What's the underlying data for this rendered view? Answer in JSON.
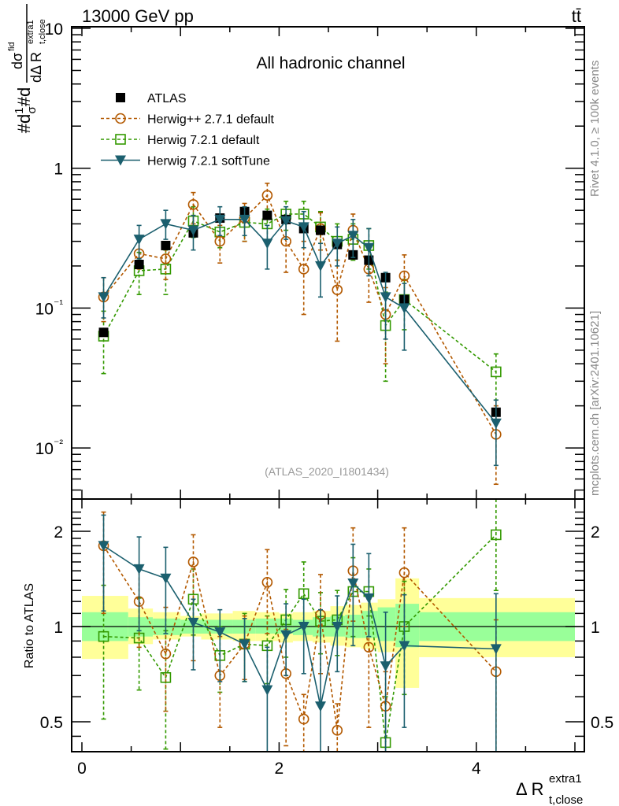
{
  "header": {
    "left_label": "13000 GeV pp",
    "right_label": "tt̄"
  },
  "side_labels": {
    "rivet": "Rivet 4.1.0, ≥ 100k events",
    "mcplots": "mcplots.cern.ch [arXiv:2401.10621]"
  },
  "chart_data": [
    {
      "type": "line",
      "panel": "main",
      "title": "All hadronic channel",
      "annotation": "(ATLAS_2020_I1801434)",
      "ylabel": "#d 1/σ #d dσ^{fid} / dΔ R_{t,close}^{extra1}",
      "yscale": "log",
      "ylim": [
        0.0045,
        11
      ],
      "yticks": [
        {
          "value": 10,
          "label": "10"
        },
        {
          "value": 1,
          "label": "1"
        },
        {
          "value": 0.1,
          "label": "10⁻¹"
        },
        {
          "value": 0.01,
          "label": "10⁻²"
        }
      ],
      "xlim": [
        -0.1,
        5.1
      ],
      "legend_position": "top-left",
      "x": [
        0.22,
        0.58,
        0.85,
        1.13,
        1.4,
        1.65,
        1.88,
        2.07,
        2.25,
        2.42,
        2.59,
        2.75,
        2.91,
        3.08,
        3.27,
        4.2
      ],
      "series": [
        {
          "name": "ATLAS",
          "style": "data",
          "color": "#000000",
          "marker": "square-filled",
          "values": [
            0.067,
            0.205,
            0.28,
            0.345,
            0.44,
            0.49,
            0.46,
            0.43,
            0.37,
            0.36,
            0.285,
            0.24,
            0.22,
            0.165,
            0.115,
            0.018
          ]
        },
        {
          "name": "Herwig++ 2.7.1 default",
          "style": "dashed",
          "color": "#b35900",
          "marker": "circle-open",
          "values": [
            0.12,
            0.245,
            0.225,
            0.55,
            0.3,
            0.44,
            0.64,
            0.3,
            0.19,
            0.37,
            0.135,
            0.36,
            0.19,
            0.09,
            0.17,
            0.0125
          ],
          "err_low": [
            0.08,
            0.19,
            0.16,
            0.4,
            0.21,
            0.3,
            0.45,
            0.18,
            0.09,
            0.26,
            0.058,
            0.25,
            0.11,
            0.04,
            0.12,
            0.0055
          ],
          "err_high": [
            0.165,
            0.31,
            0.29,
            0.67,
            0.39,
            0.56,
            0.78,
            0.42,
            0.3,
            0.48,
            0.22,
            0.47,
            0.28,
            0.14,
            0.24,
            0.02
          ]
        },
        {
          "name": "Herwig 7.2.1 default",
          "style": "dashed",
          "color": "#339900",
          "marker": "square-open",
          "values": [
            0.063,
            0.185,
            0.19,
            0.42,
            0.35,
            0.41,
            0.4,
            0.47,
            0.47,
            0.38,
            0.3,
            0.31,
            0.28,
            0.075,
            0.115,
            0.035
          ],
          "err_low": [
            0.034,
            0.125,
            0.125,
            0.32,
            0.27,
            0.3,
            0.3,
            0.36,
            0.37,
            0.29,
            0.22,
            0.22,
            0.19,
            0.03,
            0.07,
            0.022
          ],
          "err_high": [
            0.095,
            0.25,
            0.26,
            0.53,
            0.45,
            0.52,
            0.51,
            0.58,
            0.58,
            0.49,
            0.4,
            0.4,
            0.37,
            0.13,
            0.16,
            0.047
          ]
        },
        {
          "name": "Herwig 7.2.1 softTune",
          "style": "solid",
          "color": "#1b5f6e",
          "marker": "triangle-down-filled",
          "values": [
            0.12,
            0.31,
            0.4,
            0.36,
            0.43,
            0.43,
            0.29,
            0.42,
            0.38,
            0.2,
            0.29,
            0.33,
            0.27,
            0.12,
            0.1,
            0.015
          ],
          "err_low": [
            0.085,
            0.225,
            0.31,
            0.26,
            0.33,
            0.33,
            0.19,
            0.31,
            0.27,
            0.12,
            0.2,
            0.23,
            0.17,
            0.06,
            0.05,
            0.0075
          ],
          "err_high": [
            0.165,
            0.39,
            0.5,
            0.46,
            0.53,
            0.53,
            0.39,
            0.53,
            0.49,
            0.29,
            0.38,
            0.43,
            0.37,
            0.18,
            0.15,
            0.022
          ]
        }
      ]
    },
    {
      "type": "line",
      "panel": "ratio",
      "ylabel": "Ratio to ATLAS",
      "xlabel": "Δ R_{t,close}^{extra1}",
      "yscale": "log",
      "ylim": [
        0.42,
        2.35
      ],
      "yticks": [
        {
          "value": 2,
          "label": "2"
        },
        {
          "value": 1,
          "label": "1"
        },
        {
          "value": 0.5,
          "label": "0.5"
        }
      ],
      "xlim": [
        -0.1,
        5.1
      ],
      "xticks": [
        {
          "value": 0,
          "label": "0"
        },
        {
          "value": 2,
          "label": "2"
        },
        {
          "value": 4,
          "label": "4"
        }
      ],
      "reference_line": 1,
      "bands": {
        "bin_edges": [
          0.0,
          0.47,
          0.72,
          1.0,
          1.21,
          1.53,
          1.76,
          2.0,
          2.14,
          2.34,
          2.52,
          2.67,
          2.83,
          3.0,
          3.18,
          3.42,
          5.0
        ],
        "inner_low": [
          0.9,
          0.93,
          0.94,
          0.95,
          0.95,
          0.95,
          0.95,
          0.95,
          0.94,
          0.93,
          0.93,
          0.92,
          0.92,
          0.9,
          0.86,
          0.9
        ],
        "inner_high": [
          1.11,
          1.07,
          1.06,
          1.05,
          1.05,
          1.05,
          1.06,
          1.06,
          1.05,
          1.07,
          1.08,
          1.09,
          1.12,
          1.15,
          1.18,
          1.11
        ],
        "outer_low": [
          0.79,
          0.88,
          0.91,
          0.93,
          0.91,
          0.9,
          0.9,
          0.89,
          0.9,
          0.89,
          0.87,
          0.86,
          0.85,
          0.83,
          0.64,
          0.8
        ],
        "outer_high": [
          1.25,
          1.14,
          1.11,
          1.08,
          1.1,
          1.12,
          1.11,
          1.1,
          1.11,
          1.12,
          1.16,
          1.17,
          1.19,
          1.22,
          1.42,
          1.23
        ],
        "inner_color": "#99ff99",
        "outer_color": "#ffff99"
      },
      "x": [
        0.22,
        0.58,
        0.85,
        1.13,
        1.4,
        1.65,
        1.88,
        2.07,
        2.25,
        2.42,
        2.59,
        2.75,
        2.91,
        3.08,
        3.27,
        4.2
      ],
      "series": [
        {
          "name": "Herwig++ 2.7.1 default",
          "style": "dashed",
          "color": "#b35900",
          "marker": "circle-open",
          "values": [
            1.8,
            1.2,
            0.82,
            1.6,
            0.7,
            0.88,
            1.38,
            0.71,
            0.51,
            1.09,
            0.47,
            1.5,
            0.86,
            0.56,
            1.48,
            0.72
          ],
          "err_low": [
            1.1,
            0.86,
            0.54,
            0.78,
            0.48,
            0.68,
            0.95,
            0.42,
            0.4,
            0.71,
            0.38,
            1.04,
            0.48,
            0.4,
            1.0,
            0.39
          ],
          "err_high": [
            2.3,
            1.55,
            1.15,
            1.95,
            0.93,
            1.08,
            1.75,
            0.98,
            0.61,
            1.46,
            0.57,
            2.05,
            1.22,
            0.72,
            2.05,
            1.05
          ]
        },
        {
          "name": "Herwig 7.2.1 default",
          "style": "dashed",
          "color": "#339900",
          "marker": "square-open",
          "values": [
            0.93,
            0.92,
            0.69,
            1.22,
            0.81,
            0.88,
            0.87,
            1.05,
            1.27,
            1.04,
            1.05,
            1.29,
            1.29,
            0.43,
            1.0,
            1.95
          ],
          "err_low": [
            0.51,
            0.63,
            0.41,
            0.94,
            0.62,
            0.67,
            0.66,
            0.8,
            1.0,
            0.82,
            0.81,
            0.93,
            1.08,
            0.26,
            0.61,
            1.3
          ],
          "err_high": [
            1.35,
            1.23,
            0.97,
            1.52,
            1.0,
            1.1,
            1.08,
            1.31,
            1.6,
            1.28,
            1.3,
            1.65,
            1.52,
            0.6,
            1.39,
            2.6
          ]
        },
        {
          "name": "Herwig 7.2.1 softTune",
          "style": "solid",
          "color": "#1b5f6e",
          "marker": "triangle-down-filled",
          "values": [
            1.8,
            1.52,
            1.42,
            1.03,
            0.96,
            0.88,
            0.63,
            0.94,
            1.0,
            0.56,
            1.0,
            1.37,
            1.23,
            0.75,
            0.87,
            0.85
          ],
          "err_low": [
            1.12,
            0.97,
            0.95,
            0.73,
            0.67,
            0.67,
            0.4,
            0.7,
            0.71,
            0.34,
            0.72,
            0.87,
            0.93,
            0.37,
            0.48,
            0.36
          ],
          "err_high": [
            2.25,
            1.92,
            1.78,
            1.22,
            1.13,
            1.06,
            0.86,
            1.18,
            1.22,
            1.13,
            1.25,
            1.82,
            1.7,
            1.11,
            1.26,
            1.27
          ]
        }
      ]
    }
  ]
}
